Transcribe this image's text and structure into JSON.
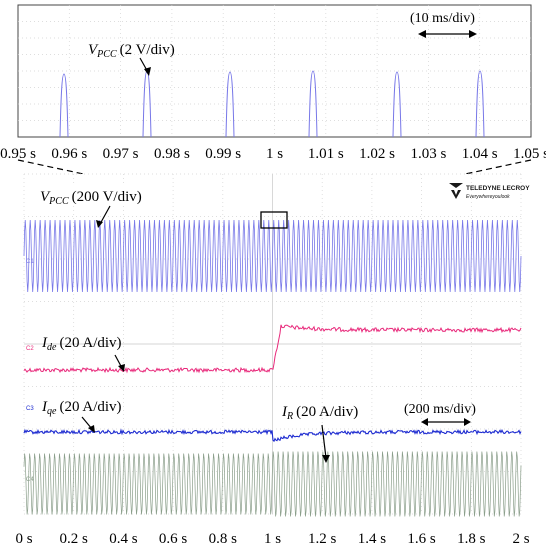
{
  "zoom_panel": {
    "channel_label": {
      "name": "V",
      "sub": "PCC",
      "scale": "(2 V/div)"
    },
    "timebase": "(10 ms/div)",
    "ticks": [
      "0.95 s",
      "0.96 s",
      "0.97 s",
      "0.98 s",
      "0.99 s",
      "1 s",
      "1.01 s",
      "1.02 s",
      "1.03 s",
      "1.04 s",
      "1.05 s"
    ]
  },
  "main_panel": {
    "logo": {
      "line1": "TELEDYNE LECROY",
      "line2": "Everywhereyoulook"
    },
    "vpcc_label": {
      "name": "V",
      "sub": "PCC",
      "scale": "(200 V/div)"
    },
    "ide_label": {
      "name": "I",
      "sub": "de",
      "scale": "(20 A/div)"
    },
    "iqe_label": {
      "name": "I",
      "sub": "qe",
      "scale": "(20 A/div)"
    },
    "ir_label": {
      "name": "I",
      "sub": "R",
      "scale": "(20 A/div)"
    },
    "timebase": "(200 ms/div)",
    "ticks": [
      "0 s",
      "0.2 s",
      "0.4 s",
      "0.6 s",
      "0.8 s",
      "1 s",
      "1.2 s",
      "1.4 s",
      "1.6 s",
      "1.8 s",
      "2 s"
    ]
  },
  "colors": {
    "vpcc": "#7878e8",
    "ide": "#e8287a",
    "iqe": "#1c2ad0",
    "ir": "#8a9e8a"
  }
}
